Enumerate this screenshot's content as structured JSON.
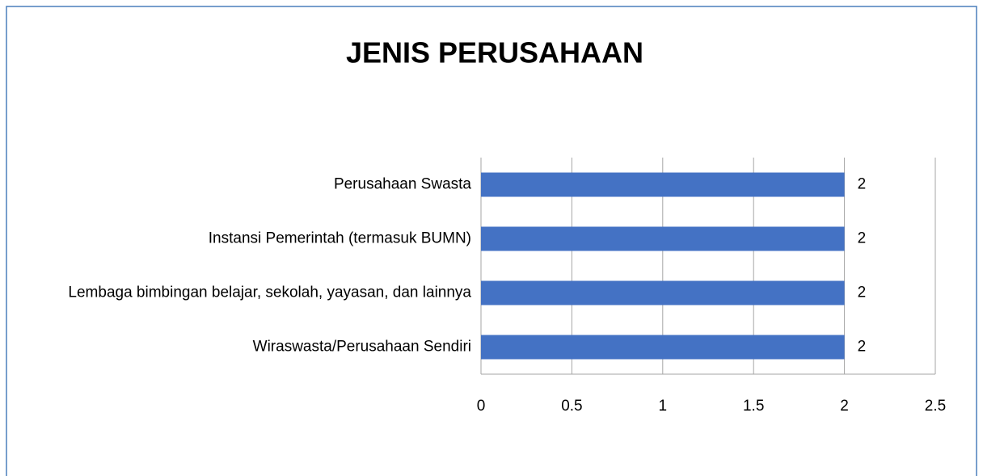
{
  "chart_data": {
    "type": "bar",
    "orientation": "horizontal",
    "title": "JENIS PERUSAHAAN",
    "categories": [
      "Perusahaan Swasta",
      "Instansi Pemerintah (termasuk BUMN)",
      "Lembaga bimbingan belajar, sekolah, yayasan, dan lainnya",
      "Wiraswasta/Perusahaan Sendiri"
    ],
    "values": [
      2,
      2,
      2,
      2
    ],
    "color": "#4472c4",
    "xlim": [
      0,
      2.5
    ],
    "xticks": [
      0,
      0.5,
      1,
      1.5,
      2,
      2.5
    ],
    "grid": true
  }
}
